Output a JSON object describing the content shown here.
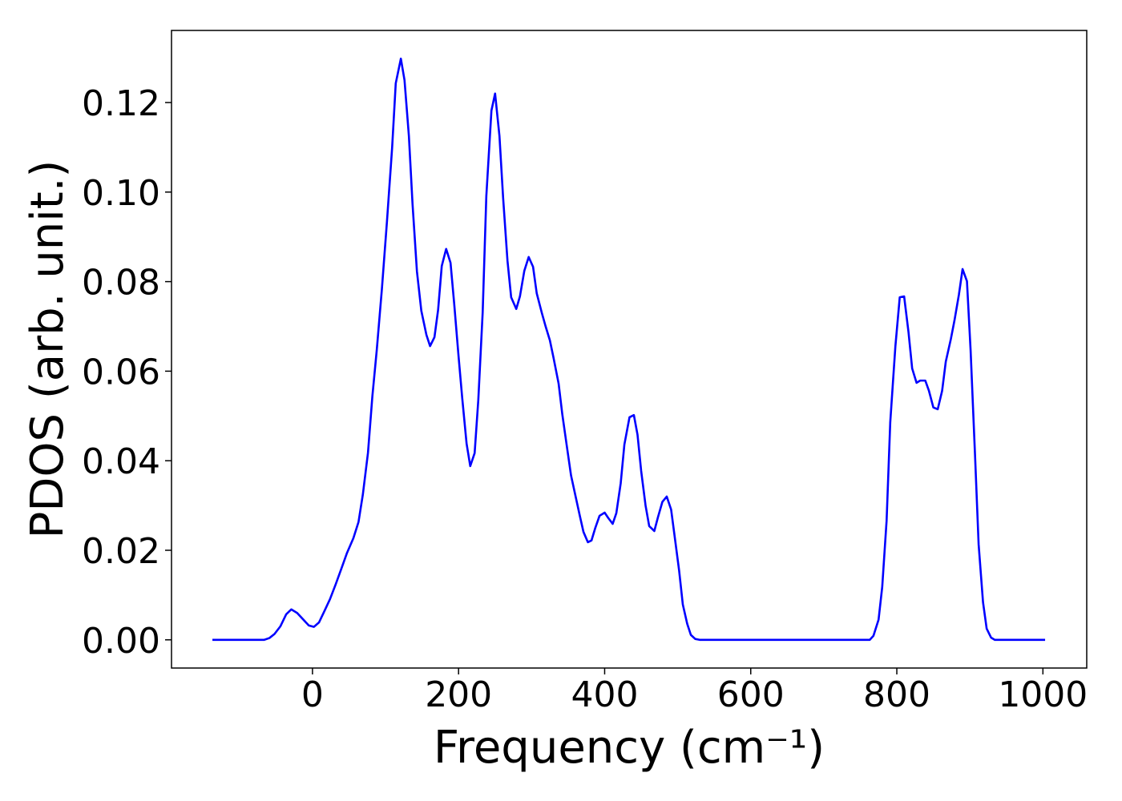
{
  "chart_data": {
    "type": "line",
    "xlabel": "Frequency (cm⁻¹)",
    "ylabel": "PDOS (arb. unit.)",
    "xlim": [
      -193,
      1060
    ],
    "ylim": [
      -0.0063,
      0.1361
    ],
    "xticks": [
      0,
      200,
      400,
      600,
      800,
      1000
    ],
    "yticks": [
      {
        "value": 0,
        "label": "0.00"
      },
      {
        "value": 0.02,
        "label": "0.02"
      },
      {
        "value": 0.04,
        "label": "0.04"
      },
      {
        "value": 0.06,
        "label": "0.06"
      },
      {
        "value": 0.08,
        "label": "0.08"
      },
      {
        "value": 0.1,
        "label": "0.10"
      },
      {
        "value": 0.12,
        "label": "0.12"
      }
    ],
    "x": [
      -137,
      -66,
      -59,
      -52,
      -44,
      -36,
      -29,
      -21,
      -13,
      -5,
      2,
      9,
      16,
      24,
      32,
      40,
      47,
      56,
      63,
      69,
      76,
      82,
      88,
      95,
      102,
      109,
      114,
      121,
      126,
      132,
      137,
      143,
      149,
      156,
      161,
      167,
      172,
      177,
      183,
      189,
      194,
      200,
      205,
      211,
      216,
      222,
      227,
      233,
      238,
      245,
      250,
      256,
      261,
      267,
      272,
      279,
      284,
      290,
      296,
      302,
      307,
      314,
      319,
      325,
      330,
      337,
      342,
      348,
      354,
      360,
      366,
      371,
      377,
      382,
      387,
      393,
      400,
      405,
      411,
      416,
      422,
      427,
      434,
      440,
      445,
      450,
      456,
      461,
      468,
      473,
      479,
      485,
      491,
      496,
      502,
      507,
      513,
      518,
      524,
      530,
      763,
      768,
      775,
      780,
      786,
      791,
      798,
      804,
      810,
      816,
      821,
      827,
      832,
      839,
      844,
      850,
      856,
      862,
      867,
      874,
      879,
      885,
      890,
      896,
      901,
      907,
      912,
      918,
      923,
      929,
      934,
      1003
    ],
    "series": [
      {
        "color": "#0000ff",
        "values": [
          0,
          0,
          0.0004,
          0.0013,
          0.003,
          0.0057,
          0.0068,
          0.006,
          0.0046,
          0.0032,
          0.0029,
          0.0039,
          0.0063,
          0.0091,
          0.0125,
          0.0161,
          0.0193,
          0.0227,
          0.0263,
          0.0325,
          0.0418,
          0.0544,
          0.0647,
          0.0783,
          0.0935,
          0.1098,
          0.1243,
          0.1298,
          0.125,
          0.1125,
          0.0973,
          0.0823,
          0.0735,
          0.0681,
          0.0656,
          0.0676,
          0.0737,
          0.0835,
          0.0873,
          0.0842,
          0.0751,
          0.0633,
          0.054,
          0.0438,
          0.0388,
          0.0417,
          0.0535,
          0.0731,
          0.0991,
          0.1182,
          0.122,
          0.1125,
          0.0987,
          0.0846,
          0.0765,
          0.0739,
          0.0767,
          0.0824,
          0.0855,
          0.0833,
          0.0774,
          0.073,
          0.0701,
          0.0669,
          0.063,
          0.0572,
          0.0504,
          0.0435,
          0.0367,
          0.0322,
          0.0277,
          0.0241,
          0.0218,
          0.0222,
          0.0249,
          0.0277,
          0.0284,
          0.0272,
          0.0259,
          0.0283,
          0.035,
          0.0436,
          0.0497,
          0.0502,
          0.0458,
          0.0377,
          0.03,
          0.0254,
          0.0243,
          0.0274,
          0.0308,
          0.032,
          0.0291,
          0.0229,
          0.0154,
          0.0079,
          0.0036,
          0.0011,
          0.0002,
          0,
          0,
          0.0009,
          0.0045,
          0.0118,
          0.0266,
          0.0486,
          0.0655,
          0.0765,
          0.0767,
          0.0687,
          0.0606,
          0.0574,
          0.0579,
          0.0579,
          0.0556,
          0.0519,
          0.0515,
          0.0556,
          0.0621,
          0.0672,
          0.0714,
          0.0771,
          0.0828,
          0.0801,
          0.0647,
          0.0415,
          0.0213,
          0.0084,
          0.0025,
          0.0005,
          0,
          0
        ]
      }
    ]
  }
}
